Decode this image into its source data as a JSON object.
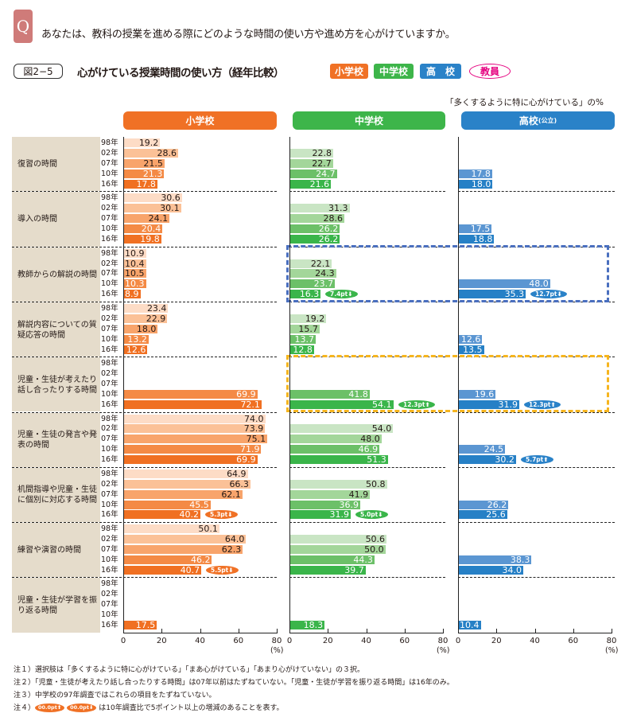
{
  "header": {
    "q_mark": "Q",
    "question": "あなたは、教科の授業を進める際にどのような時間の使い方や進め方を心がけていますか。",
    "figure_number": "図2−5",
    "figure_title": "心がけている授業時間の使い方（経年比較）",
    "tags": [
      "小学校",
      "中学校",
      "高　校",
      "教員"
    ],
    "unit_note": "「多くするように特に心がけている」の%"
  },
  "notes": [
    "注１）選択肢は「多くするように特に心がけている」「まあ心がけている」「あまり心がけていない」の３択。",
    "注２）「児童・生徒が考えたり話し合ったりする時間」は07年以前はたずねていない。「児童・生徒が学習を振り返る時間」は16年のみ。",
    "注３）中学校の97年調査ではこれらの項目をたずねていない。",
    "注４）",
    "は10年調査比で5ポイント以上の増減のあることを表す。"
  ],
  "note_badges": [
    "00.0pt⬆",
    "00.0pt⬇"
  ],
  "chart_data": {
    "type": "bar",
    "orientation": "horizontal",
    "title": "心がけている授業時間の使い方（経年比較）",
    "unit": "%",
    "xlim": [
      0,
      80
    ],
    "xticks": [
      "0",
      "20",
      "40",
      "60",
      "80"
    ],
    "xlabel": "(%)",
    "years": [
      "98年",
      "02年",
      "07年",
      "10年",
      "16年"
    ],
    "panels": [
      {
        "key": "e",
        "name": "小学校",
        "colors": [
          "#fddcc6",
          "#fbc197",
          "#f8a46b",
          "#f48a45",
          "#f07022"
        ],
        "dark_text": [
          true,
          true,
          true,
          false,
          false
        ],
        "badge_color": "#f07125"
      },
      {
        "key": "m",
        "name": "中学校",
        "colors": [
          "#c9e5c4",
          "#c9e5c4",
          "#a3d69a",
          "#6cc068",
          "#3ab54a"
        ],
        "dark_text": [
          true,
          true,
          true,
          false,
          false
        ],
        "badge_color": "#3ab54a"
      },
      {
        "key": "h",
        "name": "高校",
        "name_suffix": "(公立)",
        "colors": [
          "#5b96d2",
          "#5b96d2",
          "#5b96d2",
          "#5b96d2",
          "#2680c6"
        ],
        "dark_text": [
          false,
          false,
          false,
          false,
          false
        ],
        "badge_color": "#2a82c8"
      }
    ],
    "categories": [
      {
        "label": "復習の時間",
        "e": [
          19.2,
          28.6,
          21.5,
          21.3,
          17.8
        ],
        "m": [
          null,
          22.8,
          22.7,
          24.7,
          21.6
        ],
        "h": [
          null,
          null,
          null,
          17.8,
          18.0
        ],
        "badges": {}
      },
      {
        "label": "導入の時間",
        "e": [
          30.6,
          30.1,
          24.1,
          20.4,
          19.8
        ],
        "m": [
          null,
          31.3,
          28.6,
          26.2,
          26.2
        ],
        "h": [
          null,
          null,
          null,
          17.5,
          18.8
        ],
        "badges": {}
      },
      {
        "label": "教師からの解説の時間",
        "e": [
          10.9,
          10.4,
          10.5,
          10.3,
          8.9
        ],
        "m": [
          null,
          22.1,
          24.3,
          23.7,
          16.3
        ],
        "h": [
          null,
          null,
          null,
          48.0,
          35.3
        ],
        "badges": {
          "m": "7.4pt⬇",
          "h": "12.7pt⬇"
        },
        "highlight": "blue"
      },
      {
        "label": "解説内容についての質疑応答の時間",
        "e": [
          23.4,
          22.9,
          18.0,
          13.2,
          12.6
        ],
        "m": [
          null,
          19.2,
          15.7,
          13.7,
          12.8
        ],
        "h": [
          null,
          null,
          null,
          12.6,
          13.5
        ],
        "badges": {}
      },
      {
        "label": "児童・生徒が考えたり話し合ったりする時間",
        "e": [
          null,
          null,
          null,
          69.9,
          72.1
        ],
        "m": [
          null,
          null,
          null,
          41.8,
          54.1
        ],
        "h": [
          null,
          null,
          null,
          19.6,
          31.9
        ],
        "badges": {
          "m": "12.3pt⬆",
          "h": "12.3pt⬆"
        },
        "highlight": "orange"
      },
      {
        "label": "児童・生徒の発言や発表の時間",
        "e": [
          74.0,
          73.9,
          75.1,
          71.9,
          69.9
        ],
        "m": [
          null,
          54.0,
          48.0,
          46.9,
          51.3
        ],
        "h": [
          null,
          null,
          null,
          24.5,
          30.2
        ],
        "badges": {
          "h": "5.7pt⬆"
        }
      },
      {
        "label": "机間指導や児童・生徒に個別に対応する時間",
        "e": [
          64.9,
          66.3,
          62.1,
          45.5,
          40.2
        ],
        "m": [
          null,
          50.8,
          41.9,
          36.9,
          31.9
        ],
        "h": [
          null,
          null,
          null,
          26.2,
          25.6
        ],
        "badges": {
          "e": "5.3pt⬇",
          "m": "5.0pt⬇"
        }
      },
      {
        "label": "練習や演習の時間",
        "e": [
          50.1,
          64.0,
          62.3,
          46.2,
          40.7
        ],
        "m": [
          null,
          50.6,
          50.0,
          44.3,
          39.7
        ],
        "h": [
          null,
          null,
          null,
          38.3,
          34.0
        ],
        "badges": {
          "e": "5.5pt⬇"
        }
      },
      {
        "label": "児童・生徒が学習を振り返る時間",
        "e": [
          null,
          null,
          null,
          null,
          17.5
        ],
        "m": [
          null,
          null,
          null,
          null,
          18.3
        ],
        "h": [
          null,
          null,
          null,
          null,
          10.4
        ],
        "badges": {}
      }
    ],
    "highlight_colors": {
      "blue": "#4a6fbf",
      "orange": "#f6b51e"
    }
  }
}
